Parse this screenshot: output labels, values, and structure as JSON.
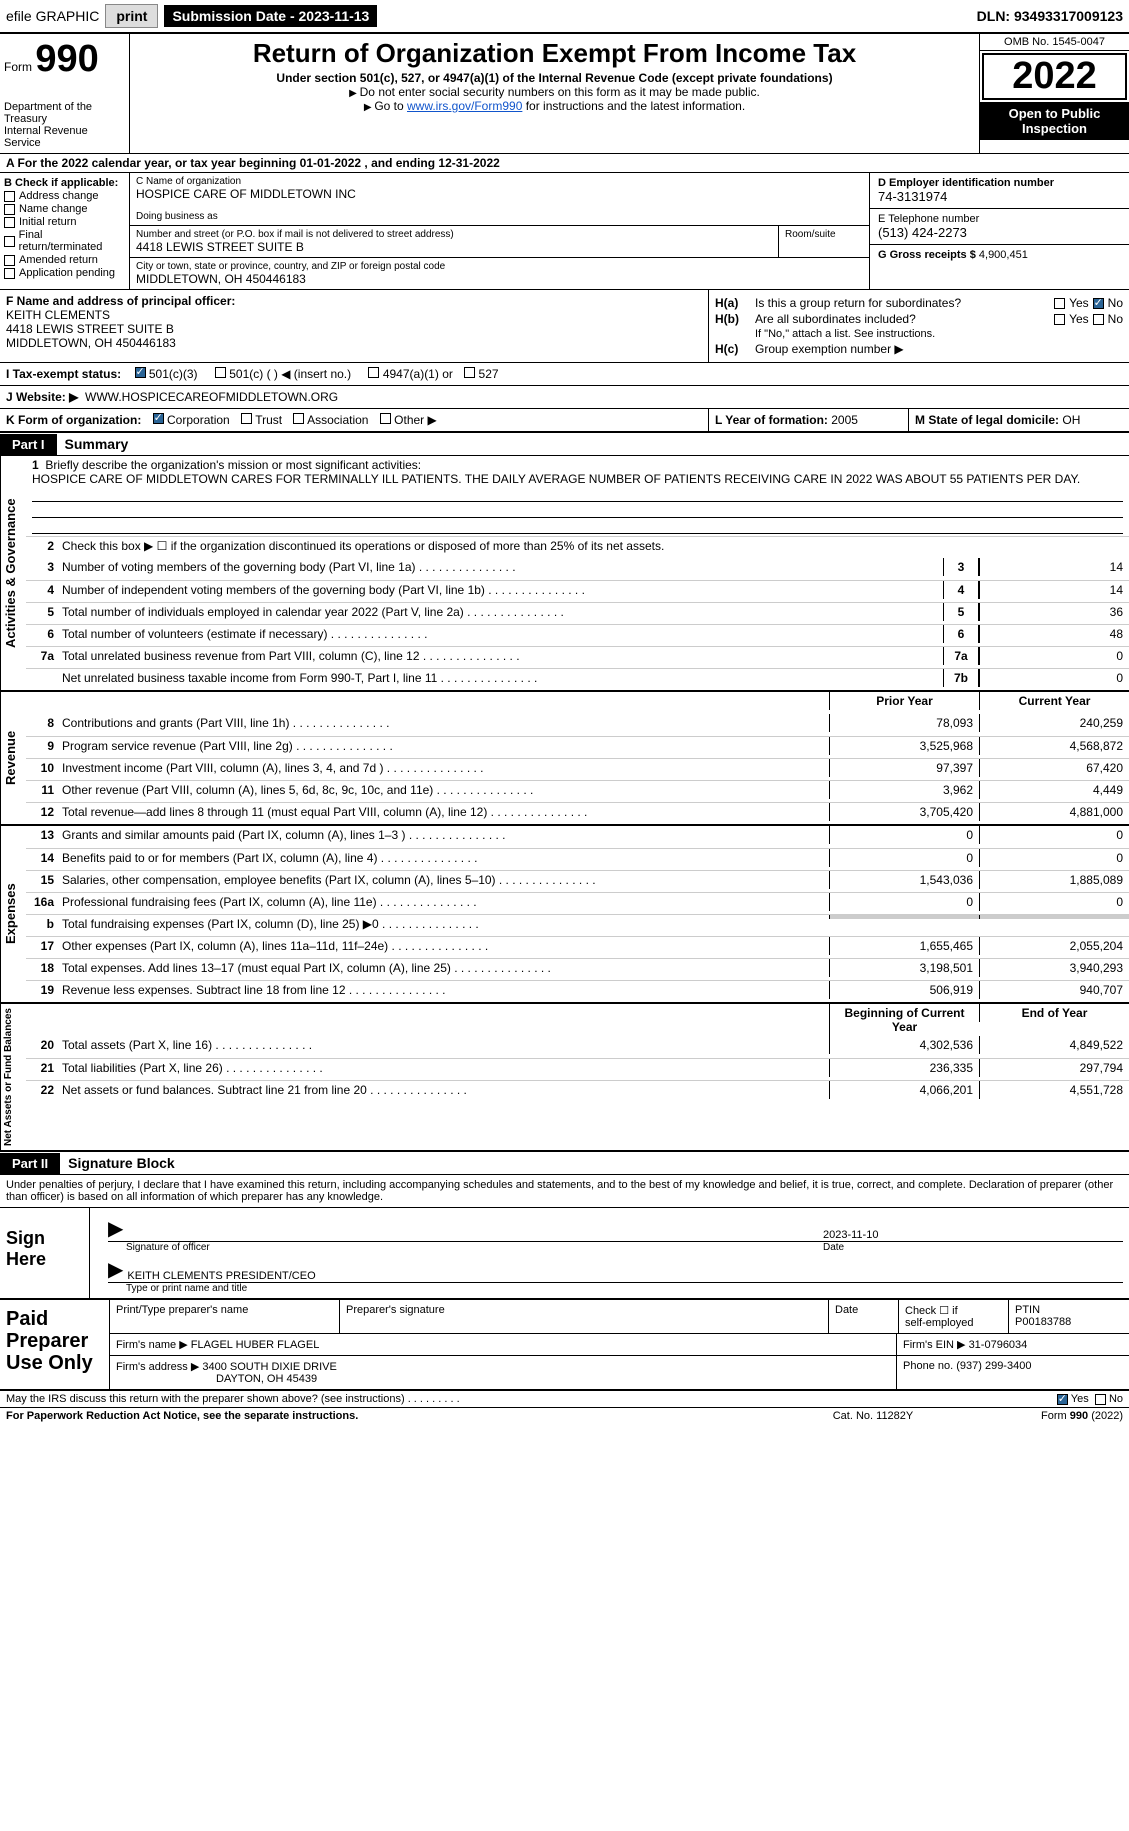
{
  "topbar": {
    "efile": "efile GRAPHIC",
    "print": "print",
    "submission_label": "Submission Date - ",
    "submission_date": "2023-11-13",
    "dln_label": "DLN: ",
    "dln": "93493317009123"
  },
  "header": {
    "form_label": "Form",
    "form_number": "990",
    "dept1": "Department of the Treasury",
    "dept2": "Internal Revenue Service",
    "title": "Return of Organization Exempt From Income Tax",
    "subtitle": "Under section 501(c), 527, or 4947(a)(1) of the Internal Revenue Code (except private foundations)",
    "note1": "Do not enter social security numbers on this form as it may be made public.",
    "note2_pre": "Go to ",
    "note2_link": "www.irs.gov/Form990",
    "note2_post": " for instructions and the latest information.",
    "omb": "OMB No. 1545-0047",
    "year": "2022",
    "inspect": "Open to Public Inspection"
  },
  "band_a": {
    "text_pre": "A For the 2022 calendar year, or tax year beginning ",
    "begin": "01-01-2022",
    "mid": "   , and ending ",
    "end": "12-31-2022"
  },
  "col_b": {
    "heading": "B Check if applicable:",
    "items": [
      "Address change",
      "Name change",
      "Initial return",
      "Final return/terminated",
      "Amended return",
      "Application pending"
    ]
  },
  "col_c": {
    "name_lbl": "C Name of organization",
    "name": "HOSPICE CARE OF MIDDLETOWN INC",
    "dba_lbl": "Doing business as",
    "dba": "",
    "street_lbl": "Number and street (or P.O. box if mail is not delivered to street address)",
    "room_lbl": "Room/suite",
    "street": "4418 LEWIS STREET SUITE B",
    "city_lbl": "City or town, state or province, country, and ZIP or foreign postal code",
    "city": "MIDDLETOWN, OH  450446183"
  },
  "col_d": {
    "ein_lbl": "D Employer identification number",
    "ein": "74-3131974",
    "phone_lbl": "E Telephone number",
    "phone": "(513) 424-2273",
    "gross_lbl": "G Gross receipts $ ",
    "gross": "4,900,451"
  },
  "row_f": {
    "lbl": "F Name and address of principal officer:",
    "name": "KEITH CLEMENTS",
    "addr1": "4418 LEWIS STREET SUITE B",
    "addr2": "MIDDLETOWN, OH  450446183"
  },
  "row_h": {
    "a_lbl": "H(a)",
    "a_txt": "Is this a group return for subordinates?",
    "b_lbl": "H(b)",
    "b_txt": "Are all subordinates included?",
    "b_note": "If \"No,\" attach a list. See instructions.",
    "c_lbl": "H(c)",
    "c_txt": "Group exemption number ▶",
    "yes": "Yes",
    "no": "No"
  },
  "row_i": {
    "lbl": "I   Tax-exempt status:",
    "opts": [
      "501(c)(3)",
      "501(c) (  ) ◀ (insert no.)",
      "4947(a)(1) or",
      "527"
    ]
  },
  "row_j": {
    "lbl": "J   Website: ▶",
    "val": "WWW.HOSPICECAREOFMIDDLETOWN.ORG"
  },
  "row_k": {
    "lbl": "K Form of organization:",
    "opts": [
      "Corporation",
      "Trust",
      "Association",
      "Other ▶"
    ],
    "l_lbl": "L Year of formation: ",
    "l_val": "2005",
    "m_lbl": "M State of legal domicile: ",
    "m_val": "OH"
  },
  "parts": {
    "p1_tag": "Part I",
    "p1_title": "Summary",
    "p2_tag": "Part II",
    "p2_title": "Signature Block"
  },
  "summary": {
    "q1_lbl": "Briefly describe the organization's mission or most significant activities:",
    "q1_txt": "HOSPICE CARE OF MIDDLETOWN CARES FOR TERMINALLY ILL PATIENTS. THE DAILY AVERAGE NUMBER OF PATIENTS RECEIVING CARE IN 2022 WAS ABOUT 55 PATIENTS PER DAY.",
    "q2": "Check this box ▶ ☐ if the organization discontinued its operations or disposed of more than 25% of its net assets.",
    "rows_ag": [
      {
        "n": "3",
        "d": "Number of voting members of the governing body (Part VI, line 1a)",
        "box": "3",
        "v": "14"
      },
      {
        "n": "4",
        "d": "Number of independent voting members of the governing body (Part VI, line 1b)",
        "box": "4",
        "v": "14"
      },
      {
        "n": "5",
        "d": "Total number of individuals employed in calendar year 2022 (Part V, line 2a)",
        "box": "5",
        "v": "36"
      },
      {
        "n": "6",
        "d": "Total number of volunteers (estimate if necessary)",
        "box": "6",
        "v": "48"
      },
      {
        "n": "7a",
        "d": "Total unrelated business revenue from Part VIII, column (C), line 12",
        "box": "7a",
        "v": "0"
      },
      {
        "n": "",
        "d": "Net unrelated business taxable income from Form 990-T, Part I, line 11",
        "box": "7b",
        "v": "0"
      }
    ],
    "hdr_prior": "Prior Year",
    "hdr_current": "Current Year",
    "rev": [
      {
        "n": "8",
        "d": "Contributions and grants (Part VIII, line 1h)",
        "p": "78,093",
        "c": "240,259"
      },
      {
        "n": "9",
        "d": "Program service revenue (Part VIII, line 2g)",
        "p": "3,525,968",
        "c": "4,568,872"
      },
      {
        "n": "10",
        "d": "Investment income (Part VIII, column (A), lines 3, 4, and 7d )",
        "p": "97,397",
        "c": "67,420"
      },
      {
        "n": "11",
        "d": "Other revenue (Part VIII, column (A), lines 5, 6d, 8c, 9c, 10c, and 11e)",
        "p": "3,962",
        "c": "4,449"
      },
      {
        "n": "12",
        "d": "Total revenue—add lines 8 through 11 (must equal Part VIII, column (A), line 12)",
        "p": "3,705,420",
        "c": "4,881,000"
      }
    ],
    "exp": [
      {
        "n": "13",
        "d": "Grants and similar amounts paid (Part IX, column (A), lines 1–3 )",
        "p": "0",
        "c": "0"
      },
      {
        "n": "14",
        "d": "Benefits paid to or for members (Part IX, column (A), line 4)",
        "p": "0",
        "c": "0"
      },
      {
        "n": "15",
        "d": "Salaries, other compensation, employee benefits (Part IX, column (A), lines 5–10)",
        "p": "1,543,036",
        "c": "1,885,089"
      },
      {
        "n": "16a",
        "d": "Professional fundraising fees (Part IX, column (A), line 11e)",
        "p": "0",
        "c": "0"
      },
      {
        "n": "b",
        "d": "Total fundraising expenses (Part IX, column (D), line 25) ▶0",
        "p": "shade",
        "c": "shade"
      },
      {
        "n": "17",
        "d": "Other expenses (Part IX, column (A), lines 11a–11d, 11f–24e)",
        "p": "1,655,465",
        "c": "2,055,204"
      },
      {
        "n": "18",
        "d": "Total expenses. Add lines 13–17 (must equal Part IX, column (A), line 25)",
        "p": "3,198,501",
        "c": "3,940,293"
      },
      {
        "n": "19",
        "d": "Revenue less expenses. Subtract line 18 from line 12",
        "p": "506,919",
        "c": "940,707"
      }
    ],
    "hdr_begin": "Beginning of Current Year",
    "hdr_end": "End of Year",
    "net": [
      {
        "n": "20",
        "d": "Total assets (Part X, line 16)",
        "p": "4,302,536",
        "c": "4,849,522"
      },
      {
        "n": "21",
        "d": "Total liabilities (Part X, line 26)",
        "p": "236,335",
        "c": "297,794"
      },
      {
        "n": "22",
        "d": "Net assets or fund balances. Subtract line 21 from line 20",
        "p": "4,066,201",
        "c": "4,551,728"
      }
    ]
  },
  "vert": {
    "ag": "Activities & Governance",
    "rev": "Revenue",
    "exp": "Expenses",
    "net": "Net Assets or Fund Balances"
  },
  "sig": {
    "text": "Under penalties of perjury, I declare that I have examined this return, including accompanying schedules and statements, and to the best of my knowledge and belief, it is true, correct, and complete. Declaration of preparer (other than officer) is based on all information of which preparer has any knowledge.",
    "sign_here": "Sign Here",
    "sig_officer": "Signature of officer",
    "date_lbl": "Date",
    "date": "2023-11-10",
    "name": "KEITH CLEMENTS  PRESIDENT/CEO",
    "name_lbl": "Type or print name and title"
  },
  "prep": {
    "title": "Paid Preparer Use Only",
    "h1": "Print/Type preparer's name",
    "h2": "Preparer's signature",
    "h3": "Date",
    "h4_a": "Check ☐ if",
    "h4_b": "self-employed",
    "h5": "PTIN",
    "ptin": "P00183788",
    "firm_name_lbl": "Firm's name      ▶ ",
    "firm_name": "FLAGEL HUBER FLAGEL",
    "firm_ein_lbl": "Firm's EIN ▶ ",
    "firm_ein": "31-0796034",
    "firm_addr_lbl": "Firm's address ▶ ",
    "firm_addr1": "3400 SOUTH DIXIE DRIVE",
    "firm_addr2": "DAYTON, OH  45439",
    "phone_lbl": "Phone no. ",
    "phone": "(937) 299-3400"
  },
  "footer": {
    "discuss": "May the IRS discuss this return with the preparer shown above? (see instructions)",
    "yes": "Yes",
    "no": "No",
    "pra": "For Paperwork Reduction Act Notice, see the separate instructions.",
    "cat": "Cat. No. 11282Y",
    "form": "Form 990 (2022)"
  }
}
